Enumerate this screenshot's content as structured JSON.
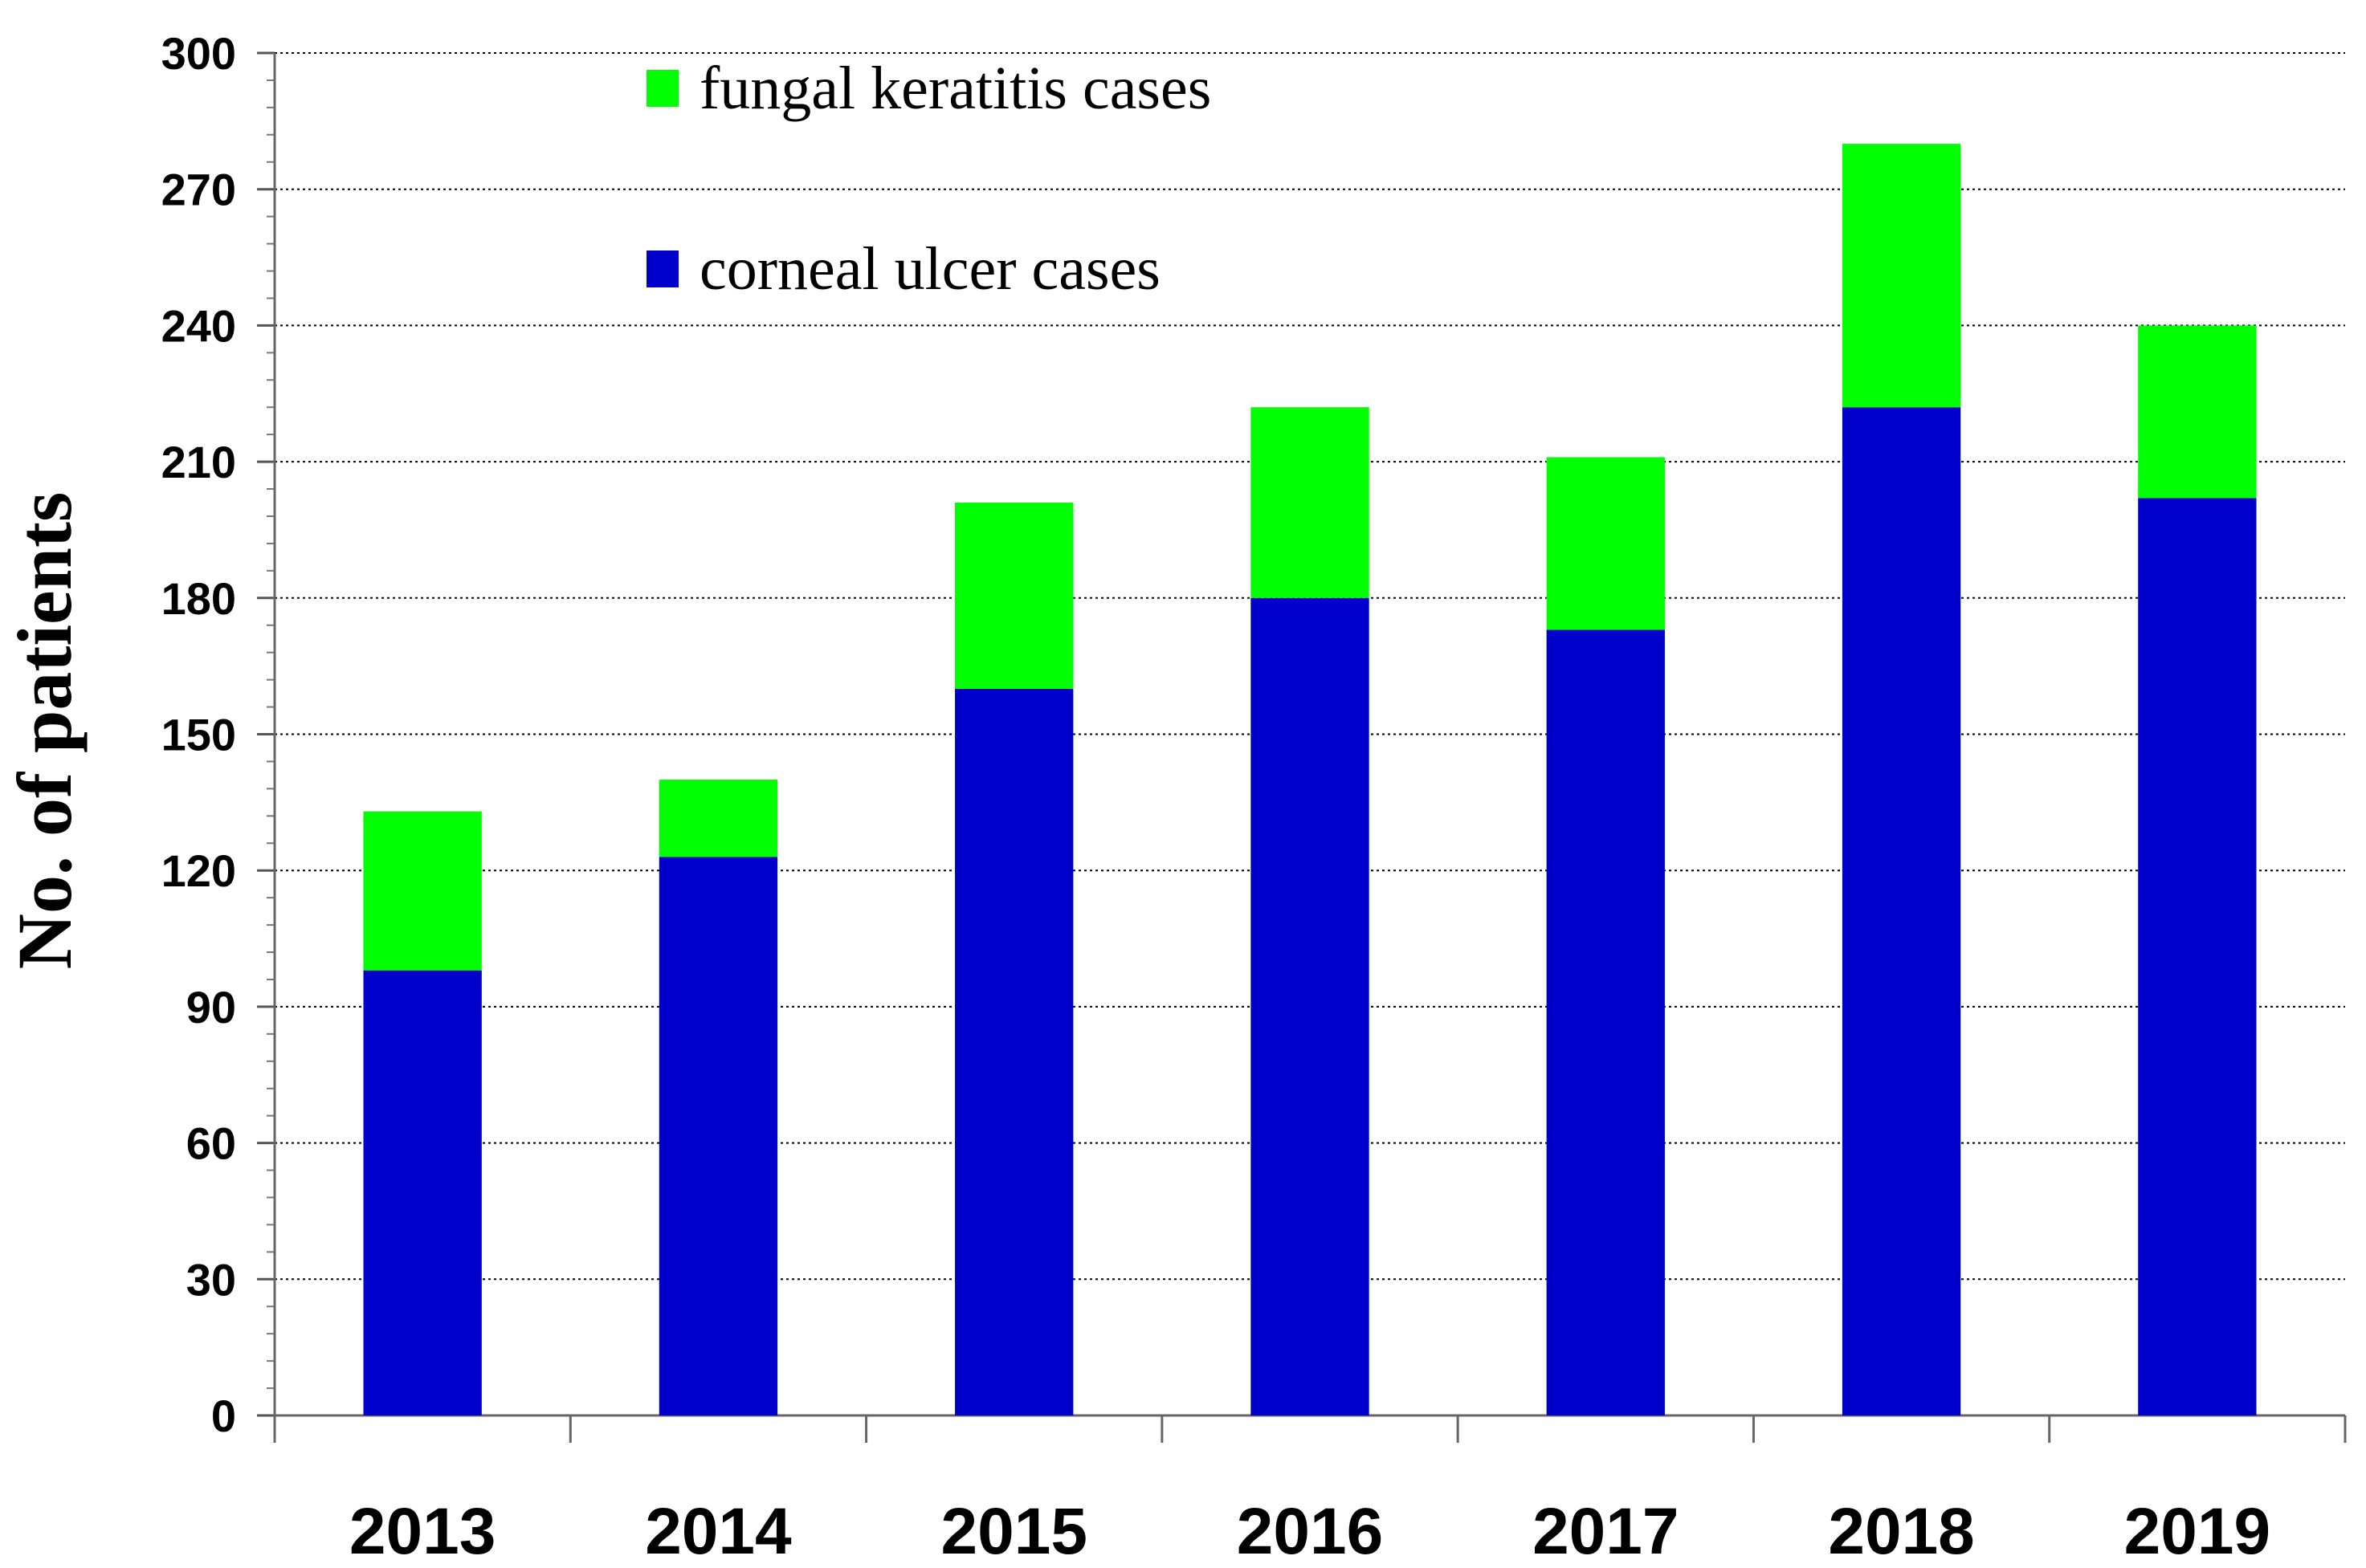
{
  "chart_data": {
    "type": "bar",
    "stacked": true,
    "title": "",
    "xlabel": "",
    "ylabel": "No. of patients",
    "ylim": [
      0,
      300
    ],
    "y_ticks": [
      0,
      30,
      60,
      90,
      120,
      150,
      180,
      210,
      240,
      270,
      300
    ],
    "y_minor_step": 6,
    "grid": true,
    "legend_position": "top-center",
    "categories": [
      "2013",
      "2014",
      "2015",
      "2016",
      "2017",
      "2018",
      "2019"
    ],
    "series": [
      {
        "name": "corneal ulcer cases",
        "color": "#0000CC",
        "values": [
          98,
          123,
          160,
          180,
          173,
          222,
          202
        ]
      },
      {
        "name": "fungal keratitis cases",
        "color": "#00FF00",
        "values": [
          35,
          17,
          41,
          42,
          38,
          58,
          38
        ]
      }
    ],
    "legend_order": [
      1,
      0
    ]
  }
}
